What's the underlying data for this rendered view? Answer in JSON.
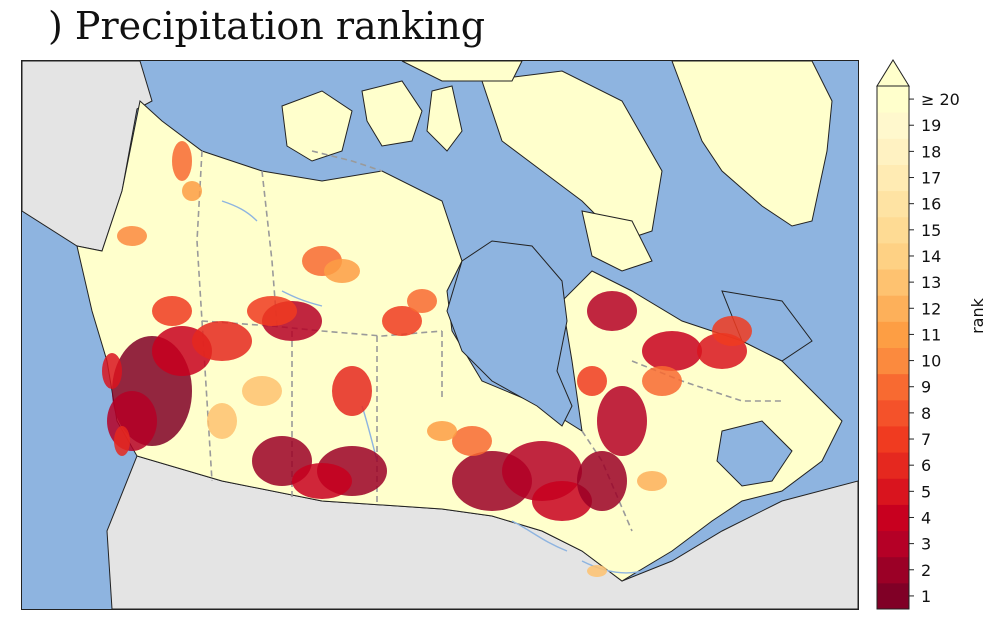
{
  "title": ") Precipitation ranking",
  "colorbar": {
    "label": "rank",
    "tick_labels": [
      "1",
      "2",
      "3",
      "4",
      "5",
      "6",
      "7",
      "8",
      "9",
      "10",
      "11",
      "12",
      "13",
      "14",
      "15",
      "16",
      "17",
      "18",
      "19",
      "≥ 20"
    ],
    "colors": [
      "#800026",
      "#9b0026",
      "#b50026",
      "#c8001f",
      "#d9141e",
      "#e5281f",
      "#f03b20",
      "#f4522a",
      "#f86a31",
      "#fb8a3e",
      "#fd9e44",
      "#fdb05a",
      "#fec270",
      "#fed184",
      "#fedb94",
      "#fee3a3",
      "#ffebb3",
      "#fff2c2",
      "#fff8cd",
      "#ffffcc"
    ]
  },
  "map_colors": {
    "ocean": "#8eb4e0",
    "land_outside": "#e4e4e4",
    "high_rank": "#ffffcc",
    "lakes": "#8eb4e0",
    "borders": "#999999"
  }
}
